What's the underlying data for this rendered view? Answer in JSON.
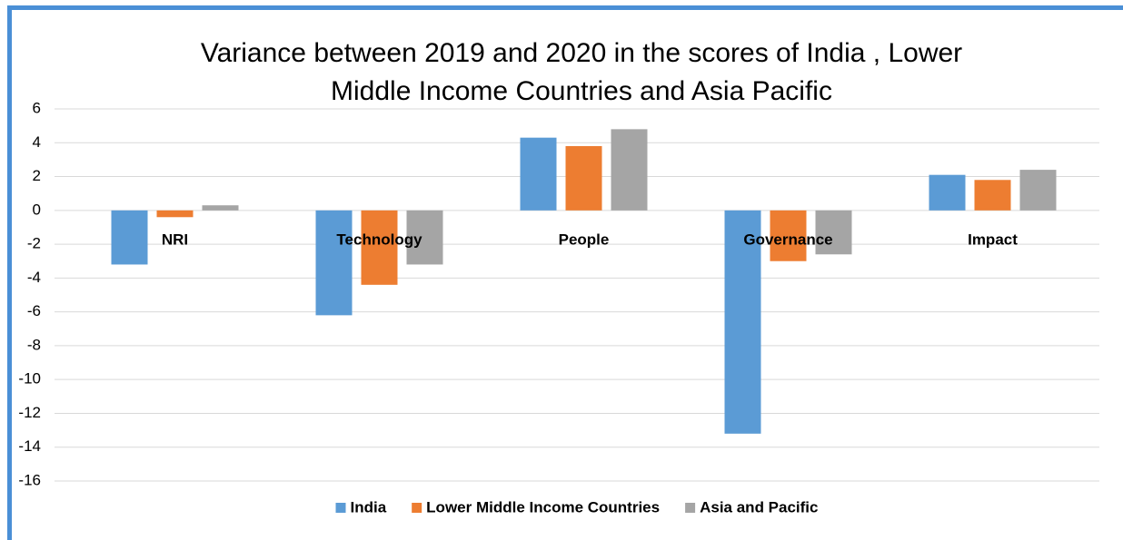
{
  "chart_data": {
    "type": "bar",
    "title": "Variance between 2019 and 2020 in the scores of India , Lower Middle Income Countries and Asia Pacific",
    "categories": [
      "NRI",
      "Technology",
      "People",
      "Governance",
      "Impact"
    ],
    "series": [
      {
        "name": "India",
        "color": "#5b9bd5",
        "values": [
          -3.2,
          -6.2,
          4.3,
          -13.2,
          2.1
        ]
      },
      {
        "name": "Lower Middle Income Countries",
        "color": "#ed7d31",
        "values": [
          -0.4,
          -4.4,
          3.8,
          -3.0,
          1.8
        ]
      },
      {
        "name": "Asia and Pacific",
        "color": "#a5a5a5",
        "values": [
          0.3,
          -3.2,
          4.8,
          -2.6,
          2.4
        ]
      }
    ],
    "ylim": [
      -16,
      6
    ],
    "yticks": [
      -16,
      -14,
      -12,
      -10,
      -8,
      -6,
      -4,
      -2,
      0,
      2,
      4,
      6
    ],
    "grid": true,
    "legend": "bottom"
  }
}
